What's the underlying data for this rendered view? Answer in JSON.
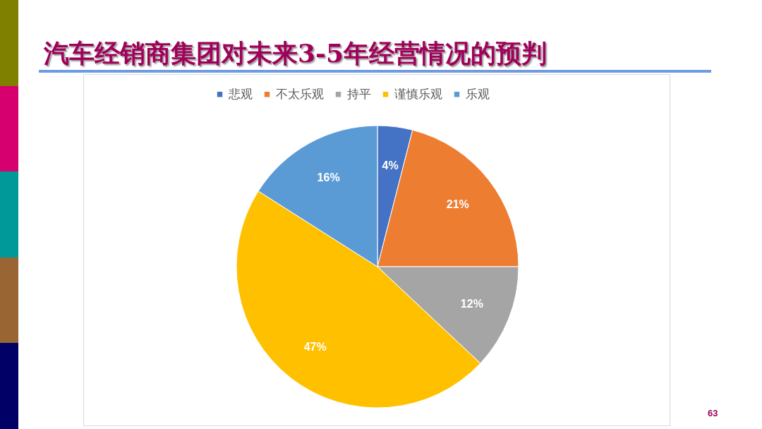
{
  "chart_data": {
    "type": "pie",
    "title": "汽车经销商集团对未来3-5年经营情况的预判",
    "categories": [
      "悲观",
      "不太乐观",
      "持平",
      "谨慎乐观",
      "乐观"
    ],
    "values": [
      4,
      21,
      12,
      47,
      16
    ],
    "value_labels": [
      "4%",
      "21%",
      "12%",
      "47%",
      "16%"
    ],
    "colors": [
      "#4472c4",
      "#ed7d31",
      "#a5a5a5",
      "#ffc000",
      "#5b9bd5"
    ],
    "legend": "top",
    "annotations": [
      "63"
    ]
  }
}
